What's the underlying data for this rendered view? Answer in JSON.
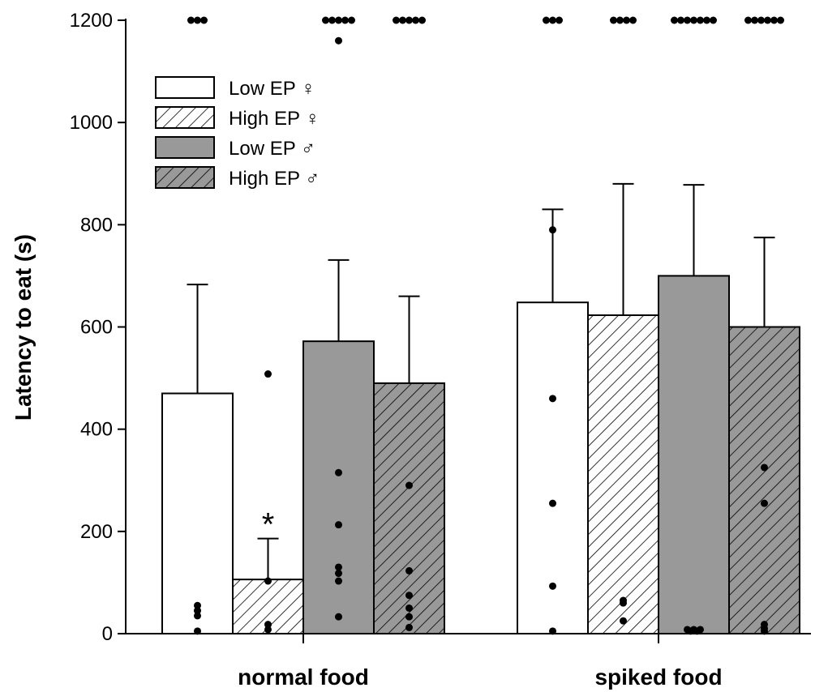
{
  "chart_data": {
    "type": "bar",
    "title": "",
    "xlabel": "",
    "ylabel": "Latency to eat (s)",
    "ylim": [
      0,
      1200
    ],
    "yticks": [
      "0",
      "200",
      "400",
      "600",
      "800",
      "1000",
      "1200"
    ],
    "categories": [
      "normal food",
      "spiked food"
    ],
    "legend_placement": "top-left",
    "grid": false,
    "series": [
      {
        "name": "Low EP ♀",
        "fill": "#ffffff",
        "hatch": false,
        "values": [
          470,
          648
        ],
        "errors": [
          683,
          830
        ],
        "points": [
          [
            1200,
            1200,
            1200,
            55,
            45,
            35,
            5
          ],
          [
            1200,
            1200,
            1200,
            790,
            460,
            255,
            93,
            5
          ]
        ]
      },
      {
        "name": "High EP ♀",
        "fill": "#ffffff",
        "hatch": true,
        "values": [
          106,
          623
        ],
        "errors": [
          186,
          880
        ],
        "points": [
          [
            508,
            103,
            18,
            8
          ],
          [
            1200,
            1200,
            1200,
            1200,
            65,
            60,
            25
          ]
        ]
      },
      {
        "name": "Low EP ♂",
        "fill": "#999999",
        "hatch": false,
        "values": [
          572,
          700
        ],
        "errors": [
          731,
          878
        ],
        "points": [
          [
            1200,
            1200,
            1200,
            1200,
            1200,
            1160,
            315,
            213,
            130,
            118,
            103,
            33
          ],
          [
            1200,
            1200,
            1200,
            1200,
            1200,
            1200,
            1200,
            8,
            8,
            8,
            5,
            5
          ]
        ]
      },
      {
        "name": "High EP ♂",
        "fill": "#999999",
        "hatch": true,
        "values": [
          490,
          600
        ],
        "errors": [
          660,
          775
        ],
        "points": [
          [
            1200,
            1200,
            1200,
            1200,
            1200,
            290,
            123,
            75,
            50,
            33,
            12
          ],
          [
            1200,
            1200,
            1200,
            1200,
            1200,
            1200,
            325,
            255,
            18,
            10,
            5
          ]
        ]
      }
    ],
    "annotations": [
      {
        "text": "*",
        "category": "normal food",
        "series": "High EP ♀"
      }
    ]
  }
}
